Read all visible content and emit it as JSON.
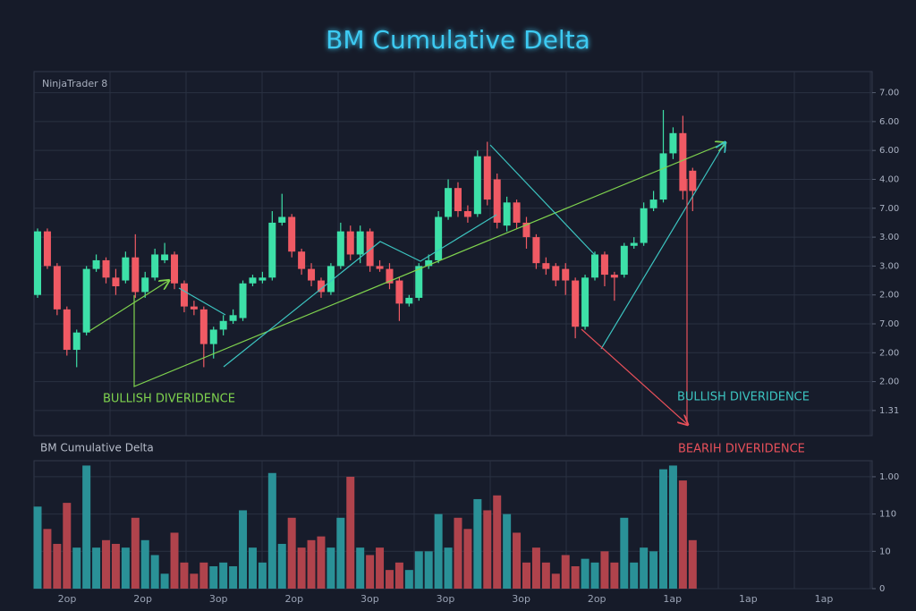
{
  "title": "BM Cumulative Delta",
  "platform": "NinjaTrader 8",
  "chart_data": [
    {
      "type": "candlestick",
      "annotations": [
        "BULLISH DIVERIDENCE",
        "BULLISH DIVERIDENCE",
        "BEARIH DIVERIDENCE"
      ],
      "up_color": "#3de0a8",
      "down_color": "#f05a64",
      "open": [
        4.0,
        6.2,
        5.0,
        3.5,
        2.1,
        2.7,
        4.9,
        5.2,
        4.6,
        4.5,
        5.3,
        4.1,
        4.6,
        5.2,
        5.4,
        4.4,
        3.6,
        3.5,
        2.3,
        2.8,
        3.1,
        3.2,
        4.4,
        4.5,
        4.6,
        6.5,
        6.7,
        5.5,
        4.9,
        4.5,
        4.1,
        5.0,
        6.2,
        5.4,
        6.2,
        5.0,
        4.9,
        4.5,
        3.7,
        3.9,
        5.0,
        5.2,
        6.7,
        7.7,
        6.9,
        6.8,
        8.8,
        8.0,
        6.4,
        7.2,
        6.5,
        6.0,
        5.1,
        5.0,
        4.9,
        4.5,
        2.9,
        4.6,
        5.4,
        4.7,
        4.7,
        5.7,
        5.8,
        7.0,
        7.3,
        8.9,
        9.6,
        8.3
      ],
      "high": [
        6.3,
        6.3,
        5.1,
        3.6,
        2.8,
        5.0,
        5.4,
        5.3,
        4.9,
        5.5,
        6.1,
        4.8,
        5.6,
        5.8,
        5.5,
        4.5,
        3.8,
        3.6,
        2.9,
        3.3,
        3.5,
        4.5,
        4.7,
        4.8,
        6.9,
        7.5,
        6.8,
        5.6,
        5.1,
        4.6,
        5.1,
        6.5,
        6.4,
        6.4,
        6.3,
        5.2,
        5.1,
        4.6,
        4.0,
        5.1,
        5.4,
        6.9,
        8.0,
        7.9,
        7.1,
        9.0,
        9.3,
        8.2,
        7.4,
        7.3,
        6.7,
        6.1,
        5.3,
        5.1,
        5.1,
        4.6,
        4.7,
        5.5,
        5.5,
        4.8,
        5.8,
        6.0,
        7.2,
        7.6,
        10.4,
        9.8,
        10.2,
        8.4
      ],
      "low": [
        3.9,
        4.9,
        3.3,
        1.9,
        1.5,
        2.6,
        4.8,
        4.4,
        4.0,
        4.4,
        3.9,
        3.9,
        4.5,
        5.1,
        4.2,
        3.4,
        3.3,
        1.5,
        1.8,
        2.6,
        3.0,
        3.1,
        4.3,
        4.4,
        4.5,
        6.4,
        5.3,
        4.7,
        4.3,
        3.9,
        4.0,
        4.9,
        5.2,
        5.1,
        4.8,
        4.8,
        4.2,
        3.1,
        3.6,
        3.8,
        4.9,
        5.1,
        6.6,
        6.7,
        6.5,
        6.7,
        7.1,
        6.3,
        6.2,
        6.3,
        5.6,
        4.9,
        4.7,
        4.3,
        4.0,
        2.5,
        2.8,
        4.5,
        4.3,
        3.8,
        4.6,
        5.6,
        5.7,
        6.9,
        7.2,
        8.7,
        7.3,
        6.9
      ],
      "close": [
        6.2,
        5.0,
        3.5,
        2.1,
        2.7,
        4.9,
        5.2,
        4.6,
        4.3,
        5.3,
        4.1,
        4.6,
        5.4,
        5.4,
        4.4,
        3.6,
        3.5,
        2.3,
        2.8,
        3.1,
        3.3,
        4.4,
        4.6,
        4.6,
        6.5,
        6.7,
        5.5,
        4.9,
        4.5,
        4.1,
        5.0,
        6.2,
        5.4,
        6.2,
        5.0,
        4.9,
        4.4,
        3.7,
        3.9,
        5.0,
        5.2,
        6.7,
        7.7,
        6.9,
        6.7,
        8.8,
        7.3,
        6.5,
        7.2,
        6.5,
        6.0,
        5.1,
        4.9,
        4.5,
        4.5,
        2.9,
        4.6,
        5.4,
        4.7,
        4.6,
        5.7,
        5.8,
        7.0,
        7.3,
        8.9,
        9.6,
        7.6,
        7.6
      ],
      "ylim": [
        -0.87,
        11.73
      ],
      "yticks": [
        {
          "value": 11,
          "label": "7.00"
        },
        {
          "value": 10,
          "label": "6.00"
        },
        {
          "value": 9,
          "label": "6.00"
        },
        {
          "value": 8,
          "label": "4.00"
        },
        {
          "value": 7,
          "label": "7.00"
        },
        {
          "value": 6,
          "label": "3.00"
        },
        {
          "value": 5,
          "label": "3.00"
        },
        {
          "value": 4,
          "label": "2.00"
        },
        {
          "value": 3,
          "label": "7.00"
        },
        {
          "value": 2,
          "label": "2.00"
        },
        {
          "value": 1,
          "label": "2.00"
        },
        {
          "value": 0,
          "label": "1.31"
        }
      ],
      "grid": true
    },
    {
      "type": "bar",
      "title": "BM Cumulative Delta",
      "up_color": "#2a9197",
      "down_color": "#b0434c",
      "values": [
        2.2,
        1.6,
        1.2,
        2.3,
        1.1,
        3.3,
        1.1,
        1.3,
        1.2,
        1.1,
        1.9,
        1.3,
        0.9,
        0.4,
        1.5,
        0.7,
        0.4,
        0.7,
        0.6,
        0.7,
        0.6,
        2.1,
        1.1,
        0.7,
        3.1,
        1.2,
        1.9,
        1.1,
        1.3,
        1.4,
        1.1,
        1.9,
        3.0,
        1.1,
        0.9,
        1.1,
        0.5,
        0.7,
        0.5,
        1.0,
        1.0,
        2.0,
        1.1,
        1.9,
        1.6,
        2.4,
        2.1,
        2.5,
        2.0,
        1.5,
        0.7,
        1.1,
        0.7,
        0.4,
        0.9,
        0.6,
        0.8,
        0.7,
        1.0,
        0.7,
        1.9,
        0.7,
        1.1,
        1.0,
        3.2,
        3.3,
        2.9,
        1.3
      ],
      "ylim": [
        0,
        3.43
      ],
      "yticks": [
        0,
        {
          "value": 1,
          "label": "10"
        },
        {
          "value": 2,
          "label": "110"
        },
        {
          "value": 3,
          "label": "1.00"
        }
      ],
      "grid": true,
      "xtick_labels": [
        "2op",
        "2op",
        "3op",
        "2op",
        "3op",
        "3op",
        "3op",
        "2op",
        "1ap",
        "1ap",
        "1ap"
      ]
    }
  ]
}
